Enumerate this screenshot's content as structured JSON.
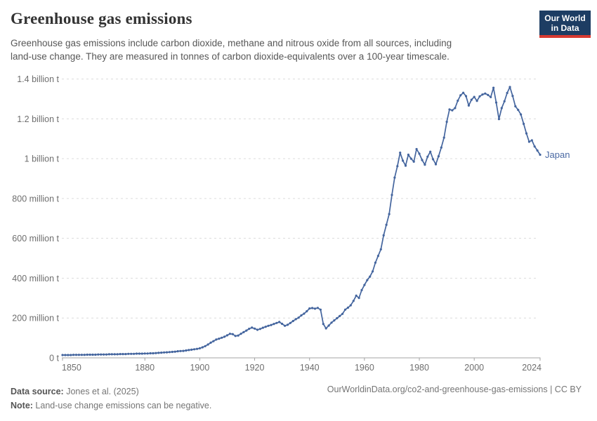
{
  "header": {
    "title": "Greenhouse gas emissions",
    "subtitle_line1": "Greenhouse gas emissions include carbon dioxide, methane and nitrous oxide from all sources, including",
    "subtitle_line2": "land-use change. They are measured in tonnes of carbon dioxide-equivalents over a 100-year timescale.",
    "logo_line1": "Our World",
    "logo_line2": "in Data"
  },
  "chart_data": {
    "type": "line",
    "title": "Greenhouse gas emissions",
    "xlabel": "",
    "ylabel": "",
    "xlim": [
      1850,
      2024
    ],
    "ylim": [
      0,
      1400
    ],
    "grid": "horizontal-dashed",
    "legend_position": "end-of-line-label",
    "end_label": "Japan",
    "x_ticks": [
      1850,
      1880,
      1900,
      1920,
      1940,
      1960,
      1980,
      2000,
      2024
    ],
    "y_ticks": [
      {
        "value": 0,
        "label": "0 t"
      },
      {
        "value": 200,
        "label": "200 million t"
      },
      {
        "value": 400,
        "label": "400 million t"
      },
      {
        "value": 600,
        "label": "600 million t"
      },
      {
        "value": 800,
        "label": "800 million t"
      },
      {
        "value": 1000,
        "label": "1 billion t"
      },
      {
        "value": 1200,
        "label": "1.2 billion t"
      },
      {
        "value": 1400,
        "label": "1.4 billion t"
      }
    ],
    "unit": "million tonnes CO2-equivalents",
    "series": [
      {
        "name": "Japan",
        "start_year": 1850,
        "end_year": 2024,
        "values": [
          14,
          14,
          14,
          14,
          15,
          15,
          15,
          15,
          15,
          16,
          16,
          16,
          16,
          17,
          17,
          17,
          17,
          18,
          18,
          18,
          18,
          19,
          19,
          19,
          20,
          20,
          20,
          21,
          21,
          21,
          22,
          22,
          23,
          23,
          24,
          25,
          26,
          27,
          28,
          29,
          30,
          31,
          33,
          34,
          35,
          37,
          39,
          41,
          43,
          45,
          48,
          53,
          59,
          67,
          76,
          84,
          92,
          96,
          101,
          106,
          113,
          121,
          119,
          110,
          112,
          121,
          129,
          137,
          146,
          152,
          147,
          141,
          145,
          151,
          156,
          161,
          165,
          170,
          175,
          180,
          171,
          161,
          166,
          175,
          185,
          194,
          202,
          213,
          222,
          234,
          248,
          250,
          247,
          251,
          242,
          170,
          148,
          162,
          177,
          188,
          199,
          210,
          221,
          242,
          252,
          264,
          286,
          312,
          301,
          340,
          366,
          390,
          408,
          434,
          478,
          512,
          545,
          615,
          668,
          722,
          818,
          905,
          962,
          1030,
          990,
          965,
          1020,
          1000,
          985,
          1048,
          1025,
          993,
          970,
          1010,
          1035,
          997,
          972,
          1012,
          1056,
          1106,
          1185,
          1247,
          1243,
          1254,
          1291,
          1318,
          1331,
          1314,
          1267,
          1296,
          1310,
          1290,
          1313,
          1322,
          1327,
          1320,
          1309,
          1356,
          1282,
          1199,
          1254,
          1288,
          1330,
          1360,
          1315,
          1263,
          1245,
          1222,
          1175,
          1127,
          1085,
          1092,
          1061,
          1041,
          1020
        ]
      }
    ],
    "colors": {
      "line": "#44659e",
      "end_label": "#4a69a3",
      "grid": "#dcdcdc",
      "axis": "#a3a3a3",
      "tick_text": "#6e6e6e"
    }
  },
  "footer": {
    "source_label": "Data source:",
    "source_value": " Jones et al. (2025)",
    "note_label": "Note:",
    "note_value": " Land-use change emissions can be negative.",
    "link": "OurWorldinData.org/co2-and-greenhouse-gas-emissions | CC BY"
  }
}
